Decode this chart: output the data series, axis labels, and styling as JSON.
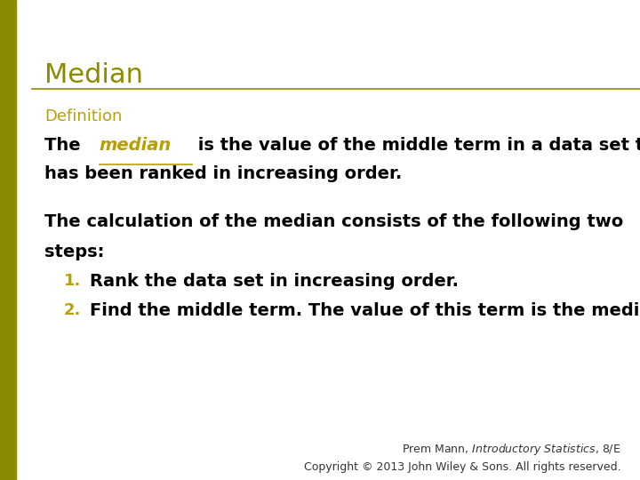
{
  "background_color": "#ffffff",
  "left_bar_color": "#8b8b00",
  "title": "Median",
  "title_color": "#8b8b00",
  "title_fontsize": 22,
  "separator_color": "#8b8b00",
  "definition_label": "Definition",
  "definition_color": "#b8a000",
  "definition_fontsize": 13,
  "body_color": "#000000",
  "body_fontsize": 14,
  "median_word_color": "#b8a000",
  "line1_before": "The ",
  "line1_median": "median",
  "line1_after": " is the value of the middle term in a data set that",
  "line2": "has been ranked in increasing order.",
  "para2_line1": "The calculation of the median consists of the following two",
  "para2_line2": "steps:",
  "step1_num": "1.",
  "step1_text": "Rank the data set in increasing order.",
  "step2_num": "2.",
  "step2_text": "Find the middle term. The value of this term is the median.",
  "footer_line1": "Prem Mann, Introductory Statistics, 8/E",
  "footer_line2": "Copyright © 2013 John Wiley & Sons. All rights reserved.",
  "footer_fontsize": 9,
  "footer_color": "#333333"
}
